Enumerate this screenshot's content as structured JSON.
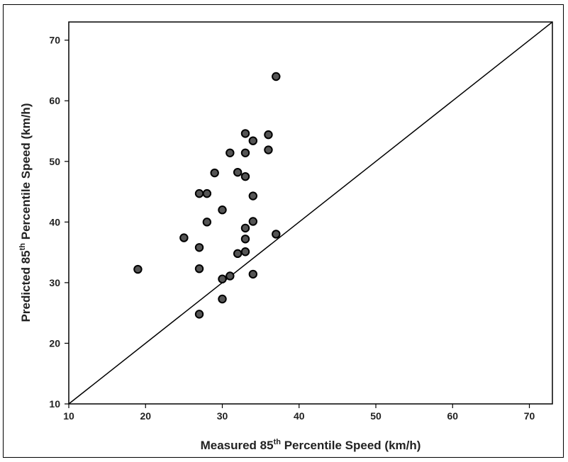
{
  "chart_data": {
    "type": "scatter",
    "title": "",
    "xlabel": {
      "pre": "Measured 85",
      "sup": "th",
      "post": " Percentile Speed (km/h)"
    },
    "ylabel": {
      "pre": "Predicted 85",
      "sup": "th",
      "post": " Percentile Speed (km/h)"
    },
    "xlim": [
      10,
      73
    ],
    "ylim": [
      10,
      73
    ],
    "xticks": [
      10,
      20,
      30,
      40,
      50,
      60,
      70
    ],
    "yticks": [
      10,
      20,
      30,
      40,
      50,
      60,
      70
    ],
    "grid": false,
    "reference_line": {
      "from": [
        10,
        10
      ],
      "to": [
        73,
        73
      ]
    },
    "marker_color": "#555555",
    "marker_edge": "#000000",
    "points": [
      {
        "x": 37,
        "y": 64
      },
      {
        "x": 33,
        "y": 54.6
      },
      {
        "x": 36,
        "y": 54.4
      },
      {
        "x": 34,
        "y": 53.4
      },
      {
        "x": 31,
        "y": 51.4
      },
      {
        "x": 33,
        "y": 51.4
      },
      {
        "x": 36,
        "y": 51.9
      },
      {
        "x": 29,
        "y": 48.1
      },
      {
        "x": 32,
        "y": 48.2
      },
      {
        "x": 33,
        "y": 47.5
      },
      {
        "x": 27,
        "y": 44.7
      },
      {
        "x": 28,
        "y": 44.7
      },
      {
        "x": 34,
        "y": 44.3
      },
      {
        "x": 30,
        "y": 42
      },
      {
        "x": 28,
        "y": 40
      },
      {
        "x": 34,
        "y": 40.1
      },
      {
        "x": 33,
        "y": 39
      },
      {
        "x": 37,
        "y": 38
      },
      {
        "x": 25,
        "y": 37.4
      },
      {
        "x": 33,
        "y": 37.2
      },
      {
        "x": 27,
        "y": 35.8
      },
      {
        "x": 33,
        "y": 35.1
      },
      {
        "x": 32,
        "y": 34.8
      },
      {
        "x": 19,
        "y": 32.2
      },
      {
        "x": 27,
        "y": 32.3
      },
      {
        "x": 34,
        "y": 31.4
      },
      {
        "x": 31,
        "y": 31.1
      },
      {
        "x": 30,
        "y": 30.6
      },
      {
        "x": 30,
        "y": 27.3
      },
      {
        "x": 27,
        "y": 24.8
      }
    ]
  }
}
